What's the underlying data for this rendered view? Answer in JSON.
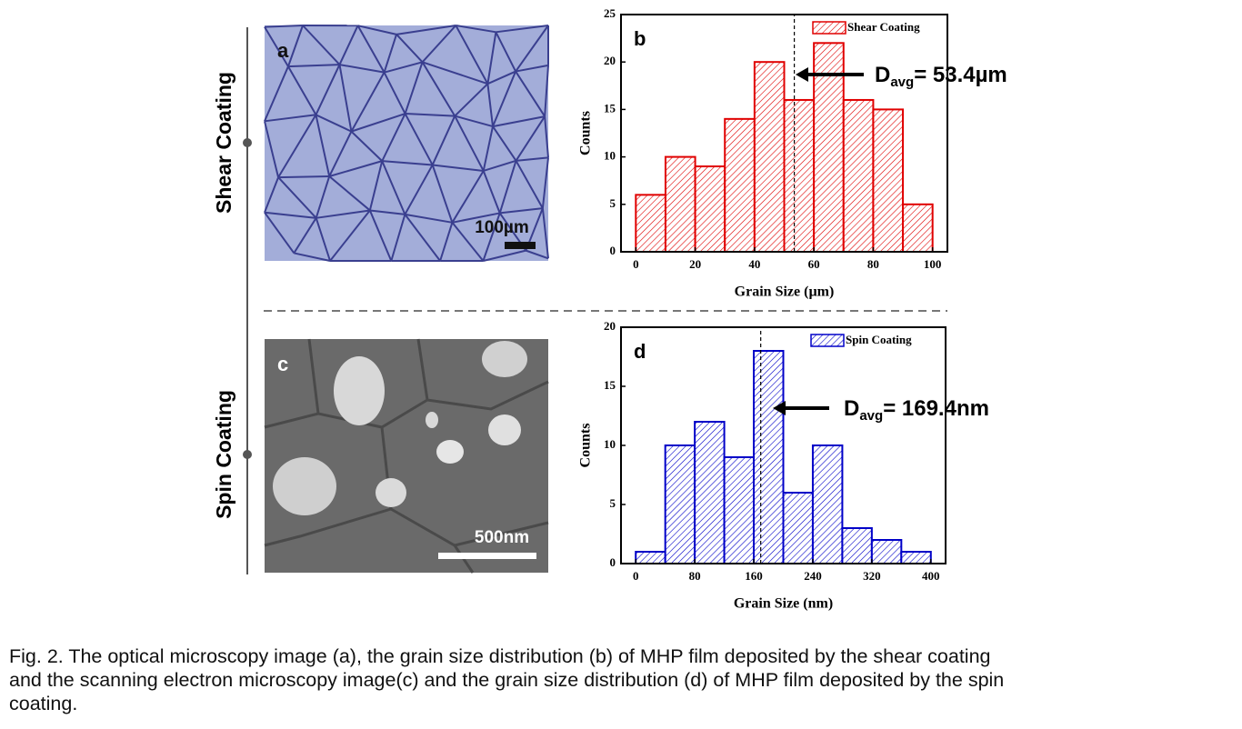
{
  "chart_data": [
    {
      "type": "histogram",
      "panel_label": "b",
      "xlabel": "Grain Size (µm)",
      "ylabel": "Counts",
      "bins": [
        0,
        10,
        20,
        30,
        40,
        50,
        60,
        70,
        80,
        90,
        100
      ],
      "series": [
        {
          "name": "Shear Coating",
          "color": "#e00000",
          "values": [
            6,
            10,
            9,
            14,
            20,
            16,
            22,
            16,
            15,
            5
          ]
        }
      ],
      "xlim": [
        -5,
        105
      ],
      "xticks": [
        0,
        20,
        40,
        60,
        80,
        100
      ],
      "ylim": [
        0,
        25
      ],
      "yticks": [
        0,
        5,
        10,
        15,
        20,
        25
      ],
      "legend": "upper right",
      "mean": 53.4,
      "annotation": {
        "symbol": "D",
        "subscript": "avg",
        "text": "= 53.4µm"
      }
    },
    {
      "type": "histogram",
      "panel_label": "d",
      "xlabel": "Grain Size (nm)",
      "ylabel": "Counts",
      "bins": [
        0,
        40,
        80,
        120,
        160,
        200,
        240,
        280,
        320,
        360,
        400
      ],
      "series": [
        {
          "name": "Spin Coating",
          "color": "#0000c8",
          "values": [
            1,
            10,
            12,
            9,
            18,
            6,
            10,
            3,
            2,
            1
          ]
        }
      ],
      "xlim": [
        -20,
        420
      ],
      "xticks": [
        0,
        80,
        160,
        240,
        320,
        400
      ],
      "ylim": [
        0,
        20
      ],
      "yticks": [
        0,
        5,
        10,
        15,
        20
      ],
      "legend": "upper right",
      "mean": 169.4,
      "annotation": {
        "symbol": "D",
        "subscript": "avg",
        "text": "= 169.4nm"
      }
    }
  ],
  "figure": {
    "side_labels": [
      "Shear Coating",
      "Spin Coating"
    ],
    "images": [
      {
        "panel_label": "a",
        "scale_bar": "100µm"
      },
      {
        "panel_label": "c",
        "scale_bar": "500nm"
      }
    ],
    "caption": [
      "Fig. 2. The optical microscopy image (a), the grain size distribution (b) of MHP film deposited by the shear coating",
      "and the scanning electron microscopy image(c) and the grain size distribution (d) of MHP film deposited by the spin",
      "coating."
    ]
  }
}
